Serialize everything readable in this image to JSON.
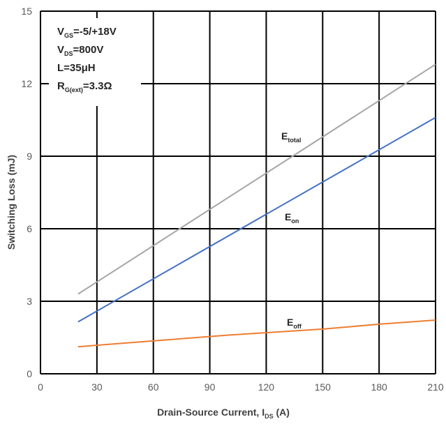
{
  "chart_data": {
    "type": "line",
    "xlabel": {
      "main": "Drain-Source Current, I",
      "sub": "DS",
      "unit": " (A)"
    },
    "ylabel": "Switching Loss (mJ)",
    "xlim": [
      0,
      210
    ],
    "ylim": [
      0,
      15
    ],
    "xticks": [
      0,
      30,
      60,
      90,
      120,
      150,
      180,
      210
    ],
    "yticks": [
      0,
      3,
      6,
      9,
      12,
      15
    ],
    "grid": true,
    "legend": "none",
    "conditions": [
      {
        "main": "V",
        "sub": "GS",
        "rest": "=-5/+18V"
      },
      {
        "main": "V",
        "sub": "DS",
        "rest": "=800V"
      },
      {
        "main": "L=35μH",
        "sub": "",
        "rest": ""
      },
      {
        "main": "R",
        "sub": "G(ext)",
        "rest": "=3.3Ω"
      }
    ],
    "series": [
      {
        "name": "E_total",
        "label_main": "E",
        "label_sub": "total",
        "color": "#a6a6a6",
        "x": [
          20,
          210
        ],
        "y": [
          3.3,
          12.8
        ]
      },
      {
        "name": "E_on",
        "label_main": "E",
        "label_sub": "on",
        "color": "#4472c4",
        "x": [
          20,
          210
        ],
        "y": [
          2.15,
          10.6
        ]
      },
      {
        "name": "E_off",
        "label_main": "E",
        "label_sub": "off",
        "color": "#ed7d31",
        "x": [
          20,
          50,
          100,
          150,
          180,
          210
        ],
        "y": [
          1.12,
          1.3,
          1.6,
          1.85,
          2.05,
          2.22
        ]
      }
    ]
  }
}
